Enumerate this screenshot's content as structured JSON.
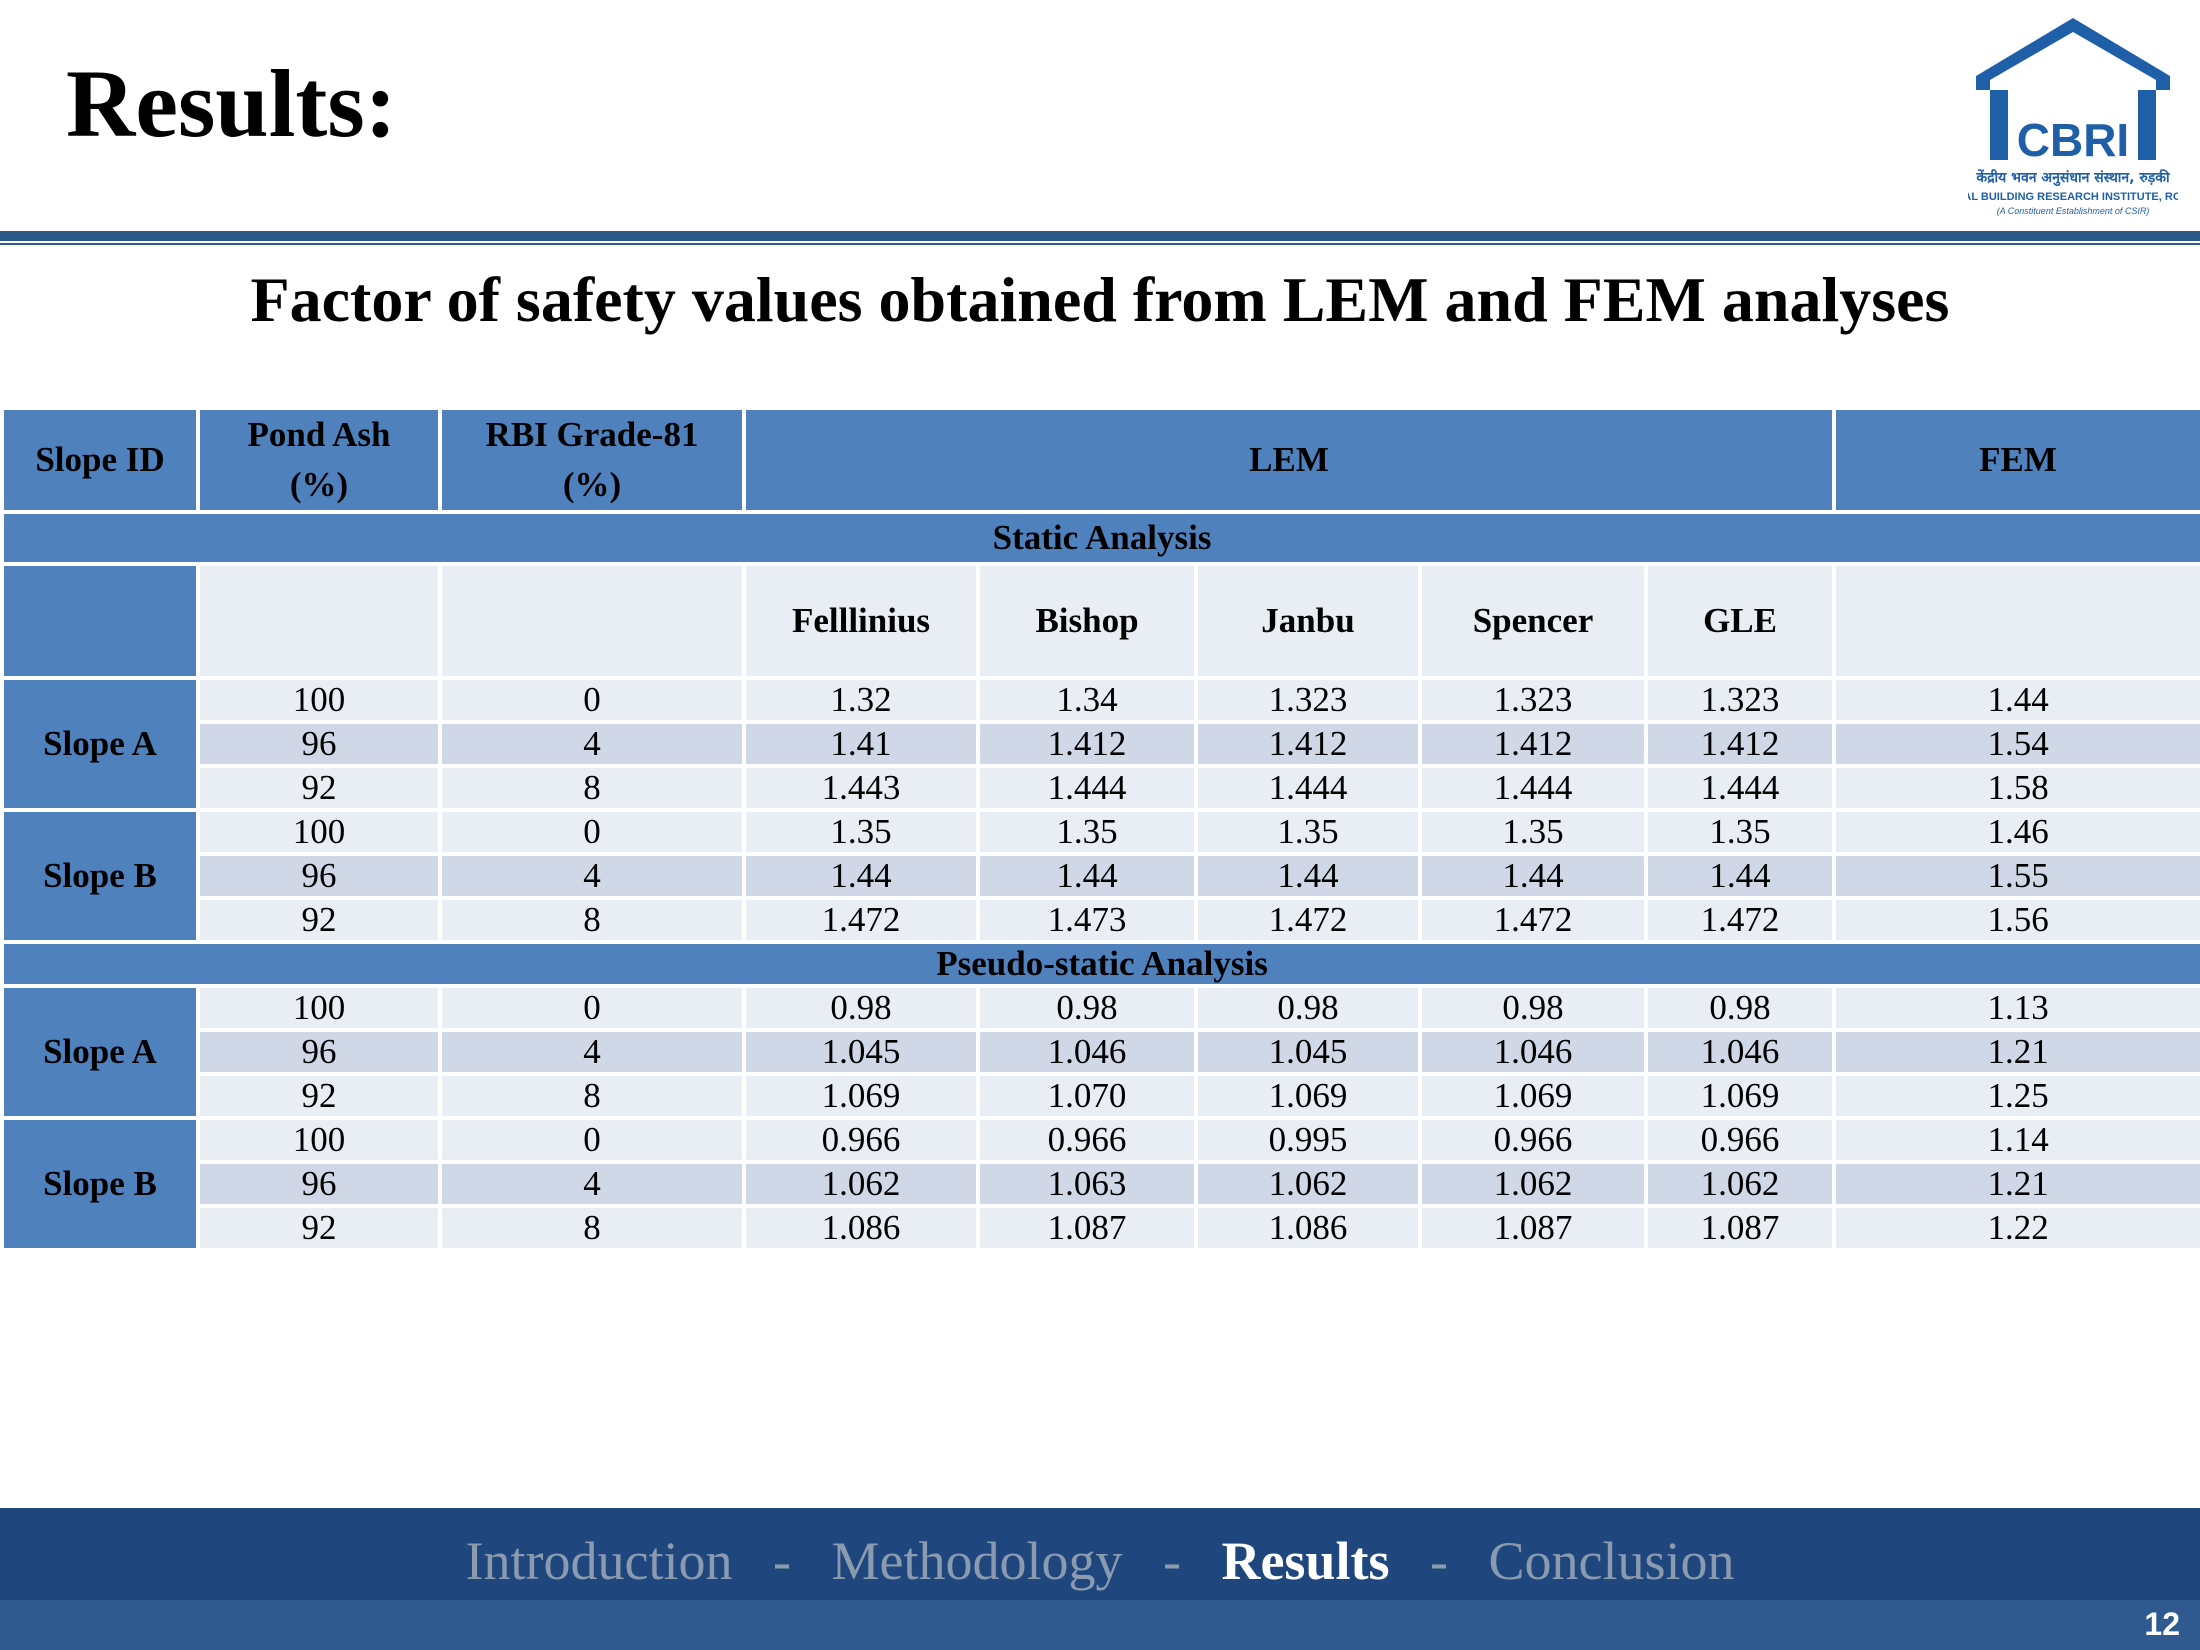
{
  "title": "Results:",
  "subtitle": "Factor of safety values obtained from LEM and FEM analyses",
  "logo": {
    "text": "CBRI",
    "hindi": "केंद्रीय भवन अनुसंधान संस्थान, रुड़की",
    "name": "CENTRAL BUILDING RESEARCH INSTITUTE, ROORKEE",
    "tagline": "(A Constituent Establishment of CSIR)",
    "color": "#1f5fa8"
  },
  "table": {
    "headers": {
      "slope_id": "Slope ID",
      "pond_ash": "Pond Ash",
      "pond_ash_unit": "(%)",
      "rbi": "RBI Grade-81",
      "rbi_unit": "(%)",
      "lem": "LEM",
      "fem": "FEM"
    },
    "methods": [
      "Felllinius",
      "Bishop",
      "Janbu",
      "Spencer",
      "GLE"
    ],
    "static_label": "Static Analysis",
    "pseudo_label": "Pseudo-static Analysis",
    "static_groups": [
      {
        "slope": "Slope A",
        "rows": [
          {
            "pond": "100",
            "rbi": "0",
            "lem": [
              "1.32",
              "1.34",
              "1.323",
              "1.323",
              "1.323"
            ],
            "fem": "1.44"
          },
          {
            "pond": "96",
            "rbi": "4",
            "lem": [
              "1.41",
              "1.412",
              "1.412",
              "1.412",
              "1.412"
            ],
            "fem": "1.54"
          },
          {
            "pond": "92",
            "rbi": "8",
            "lem": [
              "1.443",
              "1.444",
              "1.444",
              "1.444",
              "1.444"
            ],
            "fem": "1.58"
          }
        ]
      },
      {
        "slope": "Slope B",
        "rows": [
          {
            "pond": "100",
            "rbi": "0",
            "lem": [
              "1.35",
              "1.35",
              "1.35",
              "1.35",
              "1.35"
            ],
            "fem": "1.46"
          },
          {
            "pond": "96",
            "rbi": "4",
            "lem": [
              "1.44",
              "1.44",
              "1.44",
              "1.44",
              "1.44"
            ],
            "fem": "1.55"
          },
          {
            "pond": "92",
            "rbi": "8",
            "lem": [
              "1.472",
              "1.473",
              "1.472",
              "1.472",
              "1.472"
            ],
            "fem": "1.56"
          }
        ]
      }
    ],
    "pseudo_groups": [
      {
        "slope": "Slope A",
        "rows": [
          {
            "pond": "100",
            "rbi": "0",
            "lem": [
              "0.98",
              "0.98",
              "0.98",
              "0.98",
              "0.98"
            ],
            "fem": "1.13"
          },
          {
            "pond": "96",
            "rbi": "4",
            "lem": [
              "1.045",
              "1.046",
              "1.045",
              "1.046",
              "1.046"
            ],
            "fem": "1.21"
          },
          {
            "pond": "92",
            "rbi": "8",
            "lem": [
              "1.069",
              "1.070",
              "1.069",
              "1.069",
              "1.069"
            ],
            "fem": "1.25"
          }
        ]
      },
      {
        "slope": "Slope B",
        "rows": [
          {
            "pond": "100",
            "rbi": "0",
            "lem": [
              "0.966",
              "0.966",
              "0.995",
              "0.966",
              "0.966"
            ],
            "fem": "1.14"
          },
          {
            "pond": "96",
            "rbi": "4",
            "lem": [
              "1.062",
              "1.063",
              "1.062",
              "1.062",
              "1.062"
            ],
            "fem": "1.21"
          },
          {
            "pond": "92",
            "rbi": "8",
            "lem": [
              "1.086",
              "1.087",
              "1.086",
              "1.087",
              "1.087"
            ],
            "fem": "1.22"
          }
        ]
      }
    ]
  },
  "nav": {
    "items": [
      {
        "label": "Introduction",
        "active": false
      },
      {
        "label": "Methodology",
        "active": false
      },
      {
        "label": "Results",
        "active": true
      },
      {
        "label": "Conclusion",
        "active": false
      }
    ],
    "separator": "-"
  },
  "page_number": "12"
}
